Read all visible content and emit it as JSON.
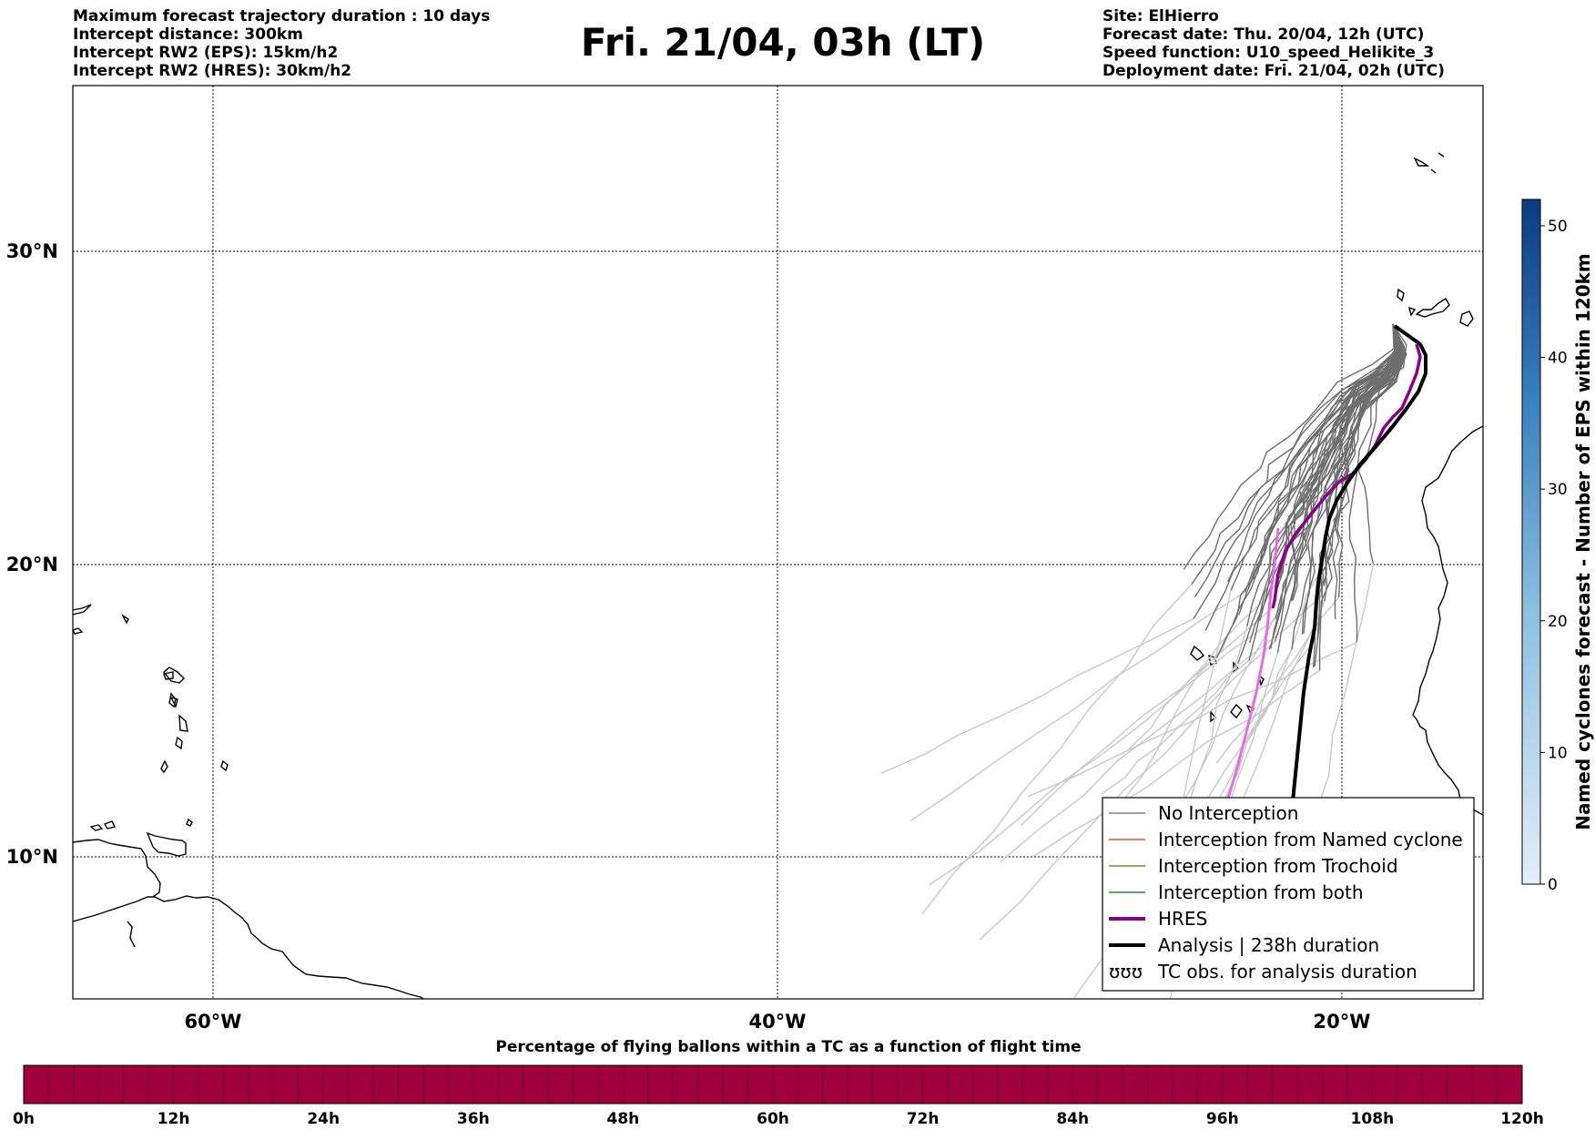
{
  "header_left": [
    "Maximum forecast trajectory duration : 10 days",
    "Intercept distance: 300km",
    "Intercept RW2 (EPS):  15km/h2",
    "Intercept RW2 (HRES): 30km/h2"
  ],
  "title": "Fri. 21/04, 03h (LT)",
  "header_right": [
    "Site: ElHierro",
    "Forecast date: Thu. 20/04, 12h (UTC)",
    "Speed function: U10_speed_Helikite_3",
    "Deployment date: Fri. 21/04, 02h (UTC)"
  ],
  "map": {
    "lat_labels": [
      "30°N",
      "20°N",
      "10°N"
    ],
    "lon_labels": [
      "60°W",
      "40°W",
      "20°W"
    ],
    "grid": true
  },
  "legend": {
    "entries": [
      {
        "label": "No Interception",
        "color": "#808080"
      },
      {
        "label": "Interception from Named cyclone",
        "color": "#e8552a"
      },
      {
        "label": "Interception from Trochoid",
        "color": "#808030"
      },
      {
        "label": "Interception from both",
        "color": "#2e8b2e"
      },
      {
        "label": "HRES",
        "color": "#8b008b"
      },
      {
        "label": "Analysis | 238h duration",
        "color": "#000000"
      },
      {
        "label": "TC obs. for analysis duration",
        "color": "#000000",
        "symbol": "ʊʊʊ"
      }
    ]
  },
  "right_colorbar": {
    "label": "Named cyclones forecast - Number of EPS within 120km",
    "ticks": [
      "0",
      "10",
      "20",
      "30",
      "40",
      "50"
    ],
    "min": 0,
    "max": 52,
    "color_low": "#e4eef8",
    "color_high": "#0b3b80"
  },
  "bottom_bar": {
    "title": "Percentage of flying ballons within a TC as a function of flight time",
    "color": "#a0003c",
    "ticks": [
      "0h",
      "12h",
      "24h",
      "36h",
      "48h",
      "60h",
      "72h",
      "84h",
      "96h",
      "108h",
      "120h"
    ]
  }
}
